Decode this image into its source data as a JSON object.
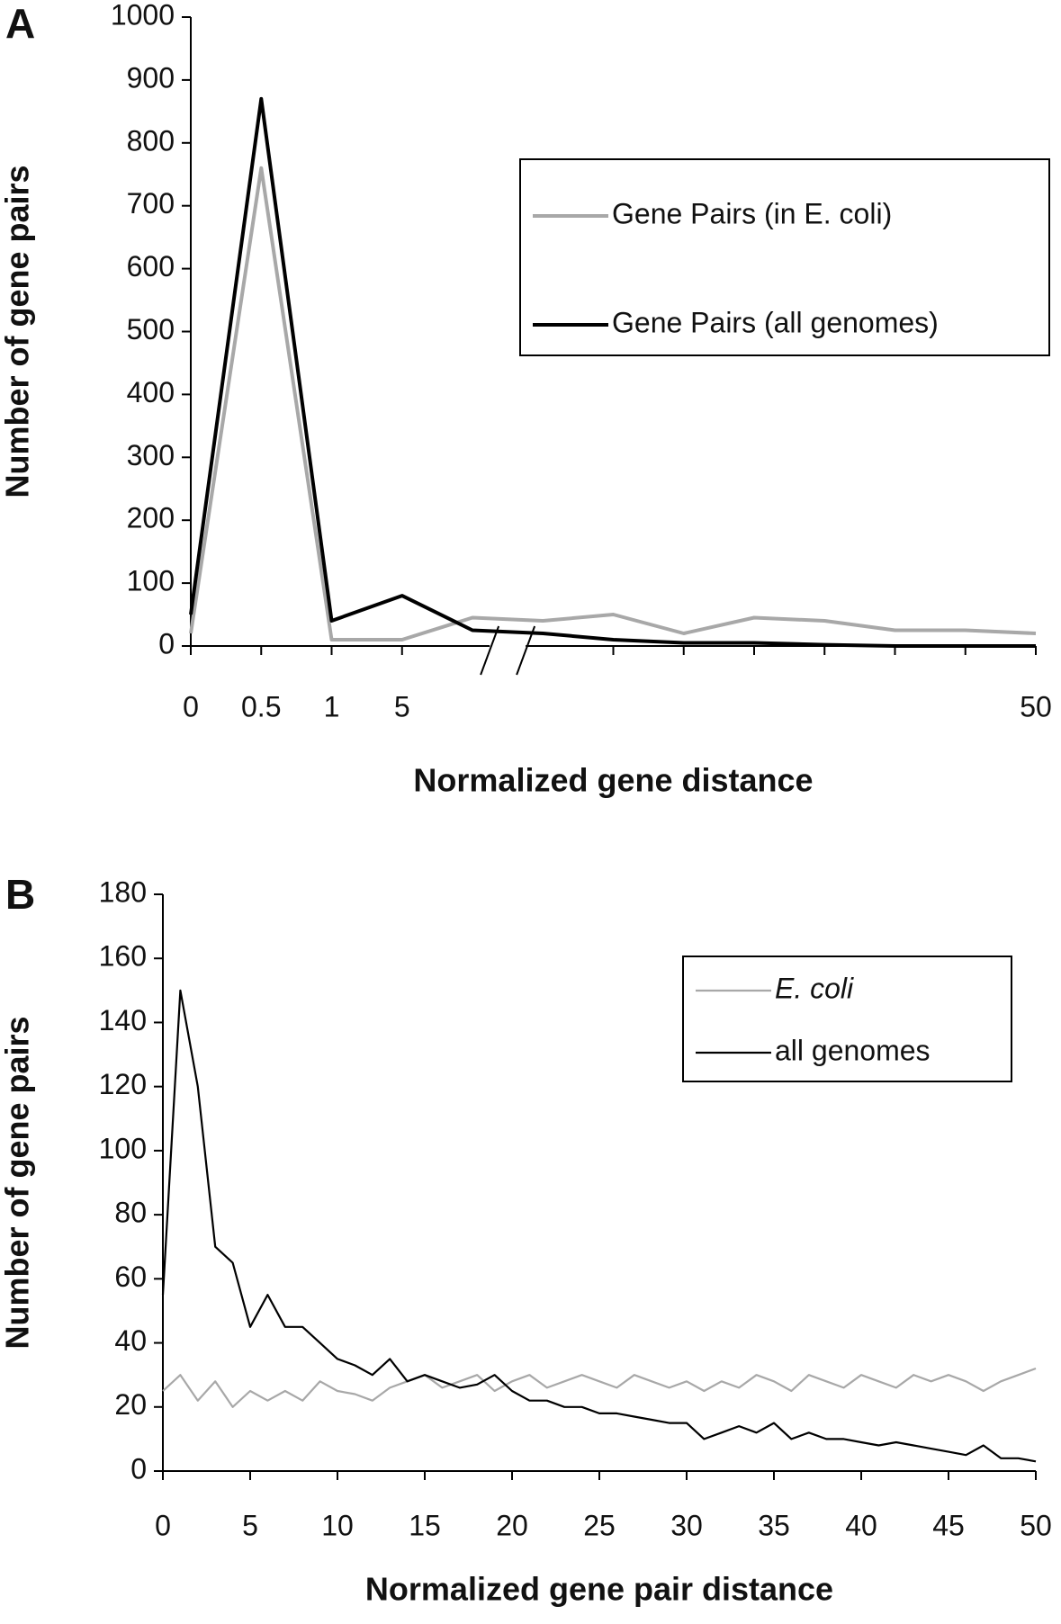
{
  "chart_data": [
    {
      "type": "line",
      "panel_label": "A",
      "x_label": "Normalized gene distance",
      "y_label": "Number of gene pairs",
      "categories": [
        "0",
        "0.5",
        "1",
        "5",
        null,
        null,
        null,
        null,
        null,
        null,
        null,
        null,
        "50"
      ],
      "axis_break": true,
      "series": [
        {
          "name": "Gene Pairs (in E. coli)",
          "color": "#a8a8a8",
          "values": [
            20,
            760,
            10,
            10,
            45,
            40,
            50,
            20,
            45,
            40,
            25,
            25,
            20
          ]
        },
        {
          "name": "Gene Pairs (all genomes)",
          "color": "#000000",
          "values": [
            50,
            870,
            40,
            80,
            25,
            20,
            10,
            5,
            5,
            2,
            0,
            0,
            0
          ]
        }
      ],
      "ylim": [
        0,
        1000
      ],
      "yticks": [
        0,
        100,
        200,
        300,
        400,
        500,
        600,
        700,
        800,
        900,
        1000
      ],
      "grid": false,
      "legend": "upper right"
    },
    {
      "type": "line",
      "panel_label": "B",
      "x_label": "Normalized gene pair distance",
      "y_label": "Number of gene pairs",
      "x": [
        0,
        1,
        2,
        3,
        4,
        5,
        6,
        7,
        8,
        9,
        10,
        11,
        12,
        13,
        14,
        15,
        16,
        17,
        18,
        19,
        20,
        21,
        22,
        23,
        24,
        25,
        26,
        27,
        28,
        29,
        30,
        31,
        32,
        33,
        34,
        35,
        36,
        37,
        38,
        39,
        40,
        41,
        42,
        43,
        44,
        45,
        46,
        47,
        48,
        49,
        50
      ],
      "series": [
        {
          "name": "E. coli",
          "color": "#a8a8a8",
          "values": [
            25,
            30,
            22,
            28,
            20,
            25,
            22,
            25,
            22,
            28,
            25,
            24,
            22,
            26,
            28,
            30,
            26,
            28,
            30,
            25,
            28,
            30,
            26,
            28,
            30,
            28,
            26,
            30,
            28,
            26,
            28,
            25,
            28,
            26,
            30,
            28,
            25,
            30,
            28,
            26,
            30,
            28,
            26,
            30,
            28,
            30,
            28,
            25,
            28,
            30,
            32
          ]
        },
        {
          "name": "all genomes",
          "color": "#000000",
          "values": [
            55,
            150,
            120,
            70,
            65,
            45,
            55,
            45,
            45,
            40,
            35,
            33,
            30,
            35,
            28,
            30,
            28,
            26,
            27,
            30,
            25,
            22,
            22,
            20,
            20,
            18,
            18,
            17,
            16,
            15,
            15,
            10,
            12,
            14,
            12,
            15,
            10,
            12,
            10,
            10,
            9,
            8,
            9,
            8,
            7,
            6,
            5,
            8,
            4,
            4,
            3
          ]
        }
      ],
      "xlim": [
        0,
        50
      ],
      "xticks": [
        0,
        5,
        10,
        15,
        20,
        25,
        30,
        35,
        40,
        45,
        50
      ],
      "ylim": [
        0,
        180
      ],
      "yticks": [
        0,
        20,
        40,
        60,
        80,
        100,
        120,
        140,
        160,
        180
      ],
      "grid": false,
      "legend": "upper right"
    }
  ]
}
